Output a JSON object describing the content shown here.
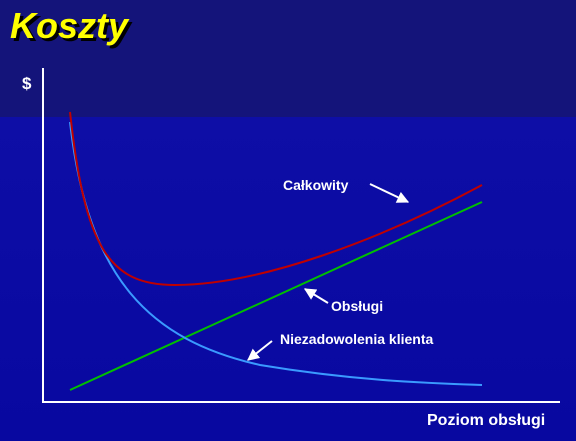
{
  "title": "Koszty",
  "axes": {
    "y_label": "$",
    "x_label": "Poziom obsługi"
  },
  "curves": [
    {
      "label": "Całkowity"
    },
    {
      "label": "Obsługi"
    },
    {
      "label": "Niezadowolenia klienta"
    }
  ]
}
